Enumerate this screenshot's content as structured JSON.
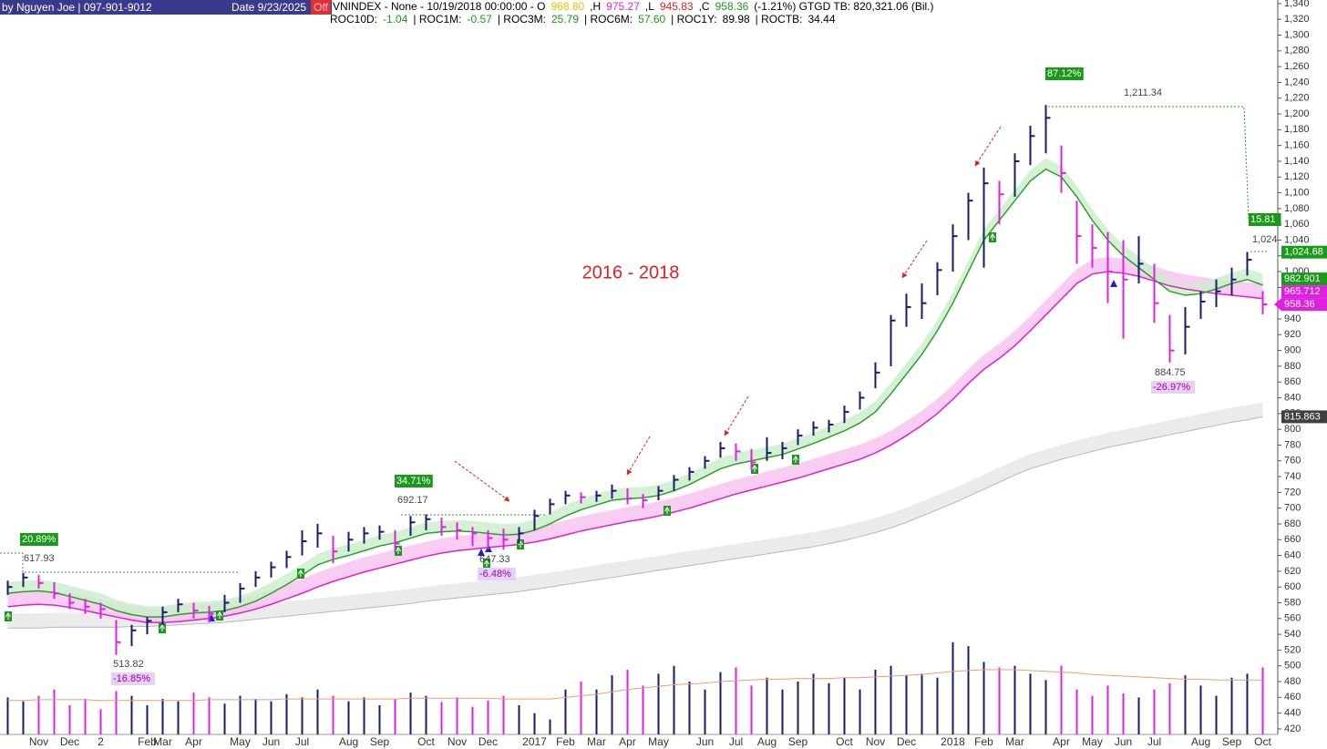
{
  "chart_data": {
    "type": "ohlc",
    "title": "2016 - 2018",
    "header": {
      "author": "by Nguyen Joe | 097-901-9012",
      "date": "Date 9/23/2025",
      "off": "Off",
      "quote": [
        {
          "text": "VNINDEX - None -  10/19/2018 00:00:00  -  O",
          "color": "#000000"
        },
        {
          "text": "968.80",
          "color": "#e8c000"
        },
        {
          "text": ",H",
          "color": "#000000"
        },
        {
          "text": "975.27",
          "color": "#e020e0"
        },
        {
          "text": ",L",
          "color": "#000000"
        },
        {
          "text": "945.83",
          "color": "#e02020"
        },
        {
          "text": ",C",
          "color": "#000000"
        },
        {
          "text": "958.36",
          "color": "#1a9a1a"
        },
        {
          "text": "(-1.21%)  GTGD TB: 820,321.06 (Bil.)",
          "color": "#000000"
        }
      ],
      "roc": [
        {
          "text": "ROC10D:",
          "color": "#000000"
        },
        {
          "text": "-1.04",
          "color": "#1a9a1a"
        },
        {
          "text": "|  ROC1M:",
          "color": "#000000"
        },
        {
          "text": "-0.57",
          "color": "#1a9a1a"
        },
        {
          "text": "|  ROC3M:",
          "color": "#000000"
        },
        {
          "text": "25.79",
          "color": "#1a9a1a"
        },
        {
          "text": "| ROC6M:",
          "color": "#000000"
        },
        {
          "text": "57.60",
          "color": "#1a9a1a"
        },
        {
          "text": "| ROC1Y:",
          "color": "#000000"
        },
        {
          "text": "89.98",
          "color": "#000000"
        },
        {
          "text": "| ROCTB:",
          "color": "#000000"
        },
        {
          "text": "34.44",
          "color": "#000000"
        }
      ]
    },
    "categories": [
      null,
      null,
      "Nov",
      null,
      "Dec",
      null,
      "2",
      null,
      null,
      "Feb",
      "Mar",
      null,
      "Apr",
      null,
      null,
      "May",
      null,
      "Jun",
      null,
      "Jul",
      null,
      null,
      "Aug",
      null,
      "Sep",
      null,
      null,
      "Oct",
      null,
      "Nov",
      null,
      "Dec",
      null,
      null,
      "2017",
      null,
      "Feb",
      null,
      "Mar",
      null,
      "Apr",
      null,
      "May",
      null,
      null,
      "Jun",
      null,
      "Jul",
      null,
      "Aug",
      null,
      "Sep",
      null,
      null,
      "Oct",
      null,
      "Nov",
      null,
      "Dec",
      null,
      null,
      "2018",
      null,
      "Feb",
      null,
      "Mar",
      null,
      null,
      "Apr",
      null,
      "May",
      null,
      "Jun",
      null,
      "Jul",
      null,
      null,
      "Aug",
      null,
      "Sep",
      null,
      "Oct"
    ],
    "high": [
      608,
      617.93,
      615,
      606,
      592,
      585,
      580,
      558,
      552,
      562,
      575,
      585,
      580,
      576,
      590,
      605,
      620,
      632,
      646,
      672,
      680,
      665,
      670,
      676,
      678,
      672,
      690,
      692.17,
      688,
      682,
      676,
      672,
      674,
      676,
      698,
      712,
      722,
      720,
      722,
      730,
      725,
      718,
      728,
      742,
      752,
      766,
      784,
      782,
      775,
      790,
      784,
      800,
      810,
      812,
      830,
      848,
      885,
      945,
      972,
      985,
      1012,
      1060,
      1100,
      1132,
      1115,
      1150,
      1185,
      1211.34,
      1160,
      1090,
      1060,
      1050,
      1040,
      1045,
      1010,
      945,
      955,
      975,
      990,
      1005,
      1025,
      975.27
    ],
    "low": [
      590,
      600,
      598,
      585,
      572,
      566,
      560,
      513.82,
      525,
      540,
      552,
      568,
      560,
      555,
      568,
      580,
      600,
      612,
      624,
      640,
      650,
      630,
      645,
      655,
      660,
      645,
      665,
      672,
      665,
      660,
      652,
      648,
      647.33,
      655,
      672,
      692,
      705,
      706,
      708,
      712,
      705,
      700,
      710,
      722,
      735,
      750,
      764,
      760,
      748,
      760,
      762,
      780,
      792,
      796,
      808,
      825,
      852,
      880,
      930,
      940,
      970,
      1000,
      1040,
      1005,
      1060,
      1095,
      1135,
      1150,
      1100,
      1010,
      1005,
      960,
      915,
      985,
      935,
      884.75,
      895,
      940,
      955,
      970,
      995,
      945.83
    ],
    "close": [
      600,
      612,
      605,
      592,
      580,
      575,
      572,
      530,
      545,
      557,
      568,
      578,
      570,
      566,
      580,
      598,
      612,
      625,
      638,
      658,
      668,
      645,
      660,
      668,
      670,
      655,
      682,
      686,
      676,
      672,
      668,
      662,
      660,
      668,
      690,
      705,
      716,
      714,
      716,
      722,
      712,
      710,
      722,
      736,
      746,
      760,
      776,
      772,
      758,
      770,
      776,
      792,
      802,
      806,
      822,
      840,
      872,
      938,
      955,
      960,
      1002,
      1045,
      1090,
      1112,
      1098,
      1140,
      1172,
      1195,
      1125,
      1045,
      1030,
      1000,
      990,
      1010,
      960,
      900,
      930,
      962,
      975,
      990,
      1015,
      958.36
    ],
    "up_color": "#1a1a6e",
    "down_color": "#e020e0",
    "averages": [
      {
        "color": "#b8b8b8",
        "band": "#e8e8e8",
        "values": [
          548,
          548,
          548,
          549,
          549,
          549,
          549,
          549,
          550,
          550,
          551,
          552,
          553,
          554,
          555,
          557,
          559,
          561,
          563,
          565,
          567,
          569,
          571,
          573,
          575,
          577,
          579,
          582,
          584,
          586,
          588,
          590,
          592,
          594,
          597,
          600,
          603,
          606,
          609,
          612,
          615,
          618,
          621,
          624,
          627,
          630,
          633,
          636,
          639,
          642,
          645,
          648,
          651,
          655,
          659,
          664,
          669,
          675,
          682,
          690,
          698,
          706,
          715,
          724,
          733,
          742,
          750,
          756,
          762,
          767,
          772,
          777,
          781,
          785,
          789,
          793,
          797,
          801,
          805,
          809,
          812,
          815.863
        ]
      },
      {
        "color": "#e020d0",
        "band": "#f8c4f0",
        "values": [
          575,
          577,
          578,
          577,
          574,
          570,
          566,
          562,
          558,
          555,
          555,
          556,
          558,
          560,
          563,
          567,
          572,
          578,
          585,
          592,
          600,
          607,
          613,
          619,
          624,
          629,
          634,
          639,
          643,
          646,
          648,
          650,
          652,
          654,
          657,
          661,
          666,
          671,
          675,
          679,
          683,
          686,
          690,
          695,
          700,
          706,
          712,
          718,
          723,
          728,
          733,
          738,
          744,
          750,
          756,
          762,
          770,
          780,
          792,
          805,
          820,
          838,
          858,
          876,
          890,
          906,
          925,
          945,
          965,
          985,
          997,
          1000,
          998,
          994,
          988,
          982,
          978,
          975,
          972,
          970,
          968,
          965.712
        ]
      },
      {
        "color": "#2ca02c",
        "band": "#cdeecd",
        "values": [
          592,
          594,
          595,
          593,
          588,
          583,
          578,
          570,
          565,
          562,
          562,
          565,
          567,
          568,
          570,
          575,
          582,
          592,
          603,
          615,
          628,
          635,
          640,
          646,
          652,
          656,
          662,
          668,
          670,
          671,
          670,
          668,
          666,
          667,
          672,
          680,
          690,
          698,
          704,
          710,
          712,
          713,
          716,
          722,
          730,
          740,
          750,
          756,
          760,
          764,
          768,
          775,
          782,
          790,
          798,
          808,
          822,
          845,
          870,
          895,
          925,
          960,
          1000,
          1040,
          1065,
          1090,
          1115,
          1130,
          1120,
          1095,
          1065,
          1040,
          1020,
          1005,
          990,
          975,
          970,
          972,
          978,
          985,
          990,
          982.901
        ]
      }
    ],
    "volume": [
      460,
      455,
      462,
      470,
      450,
      458,
      445,
      468,
      462,
      450,
      458,
      455,
      466,
      460,
      452,
      462,
      458,
      455,
      464,
      460,
      470,
      462,
      455,
      460,
      450,
      458,
      466,
      462,
      454,
      460,
      448,
      456,
      462,
      450,
      440,
      432,
      470,
      480,
      470,
      488,
      495,
      475,
      490,
      500,
      480,
      470,
      492,
      498,
      475,
      485,
      470,
      480,
      490,
      478,
      485,
      470,
      495,
      500,
      488,
      490,
      485,
      530,
      525,
      505,
      498,
      500,
      490,
      482,
      500,
      470,
      462,
      475,
      465,
      460,
      470,
      478,
      488,
      475,
      462,
      485,
      490,
      498
    ],
    "volume_ma": [
      456,
      456,
      457,
      457,
      457,
      457,
      456,
      456,
      456,
      456,
      456,
      456,
      456,
      457,
      457,
      457,
      457,
      457,
      458,
      458,
      458,
      458,
      458,
      458,
      458,
      458,
      459,
      459,
      459,
      459,
      459,
      459,
      458,
      458,
      458,
      458,
      460,
      462,
      464,
      467,
      470,
      472,
      474,
      476,
      477,
      478,
      480,
      481,
      482,
      483,
      483,
      484,
      484,
      484,
      485,
      485,
      486,
      487,
      488,
      489,
      491,
      493,
      494,
      495,
      495,
      495,
      494,
      493,
      492,
      491,
      489,
      488,
      487,
      486,
      485,
      484,
      483,
      483,
      482,
      482,
      482,
      482
    ],
    "volume_ma_color": "#e8a070",
    "annotations": [
      {
        "value": 20.89,
        "label": "20.89%",
        "style": "gain"
      },
      {
        "value": 617.93,
        "label": "617.93",
        "style": "price"
      },
      {
        "value": 513.82,
        "label": "513.82",
        "style": "price"
      },
      {
        "value": -16.85,
        "label": "-16.85%",
        "style": "loss"
      },
      {
        "value": 34.71,
        "label": "34.71%",
        "style": "gain"
      },
      {
        "value": 692.17,
        "label": "692.17",
        "style": "price"
      },
      {
        "value": 647.33,
        "label": "647.33",
        "style": "price"
      },
      {
        "value": -6.48,
        "label": "-6.48%",
        "style": "loss"
      },
      {
        "value": 87.12,
        "label": "87.12%",
        "style": "gain"
      },
      {
        "value": 1211.34,
        "label": "1,211.34",
        "style": "price"
      },
      {
        "value": 884.75,
        "label": "884.75",
        "style": "price"
      },
      {
        "value": -26.97,
        "label": "-26.97%",
        "style": "loss"
      },
      {
        "value": 15.81,
        "label": "15.81",
        "style": "gain"
      },
      {
        "value": 1024,
        "label": "1,024",
        "style": "price"
      }
    ],
    "price_markers": [
      {
        "value": 815.863,
        "label": "815.863",
        "color": "#404040"
      },
      {
        "value": 958.36,
        "label": "958.36",
        "color": "#e020e0"
      },
      {
        "value": 965.712,
        "label": "965.712",
        "color": "#e020e0"
      },
      {
        "value": 982.901,
        "label": "982.901",
        "color": "#1a9a1a"
      },
      {
        "value": 1024.68,
        "label": "1,024.68",
        "color": "#1a9a1a"
      }
    ],
    "ylim": [
      413,
      1344.5
    ],
    "yticks": [
      420,
      440,
      460,
      480,
      500,
      520,
      540,
      560,
      580,
      600,
      620,
      640,
      660,
      680,
      700,
      720,
      740,
      760,
      780,
      800,
      820,
      840,
      860,
      880,
      900,
      920,
      940,
      960,
      980,
      {
        "value": 1000,
        "label": "1,000"
      },
      {
        "value": 1020,
        "label": "1,020"
      },
      {
        "value": 1040,
        "label": "1,040"
      },
      {
        "value": 1060,
        "label": "1,060"
      },
      {
        "value": 1080,
        "label": "1,080"
      },
      {
        "value": 1100,
        "label": "1,100"
      },
      {
        "value": 1120,
        "label": "1,120"
      },
      {
        "value": 1140,
        "label": "1,140"
      },
      {
        "value": 1160,
        "label": "1,160"
      },
      {
        "value": 1180,
        "label": "1,180"
      },
      {
        "value": 1200,
        "label": "1,200"
      },
      {
        "value": 1220,
        "label": "1,220"
      },
      {
        "value": 1240,
        "label": "1,240"
      },
      {
        "value": 1260,
        "label": "1,260"
      },
      {
        "value": 1280,
        "label": "1,280"
      },
      {
        "value": 1300,
        "label": "1,300"
      },
      {
        "value": 1320,
        "label": "1,320"
      },
      {
        "value": 1340,
        "label": "1,340"
      }
    ],
    "grid": false
  }
}
